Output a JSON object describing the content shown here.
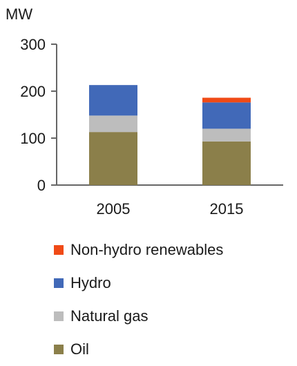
{
  "chart_data": {
    "type": "bar",
    "stacked": true,
    "unit_label": "MW",
    "categories": [
      "2005",
      "2015"
    ],
    "ylim": [
      0,
      300
    ],
    "yticks": [
      0,
      100,
      200,
      300
    ],
    "grid": false,
    "legend_position": "bottom",
    "series": [
      {
        "name": "Oil",
        "color": "#8b7f4a",
        "values": [
          113,
          93
        ]
      },
      {
        "name": "Natural gas",
        "color": "#bdbdbd",
        "values": [
          35,
          27
        ]
      },
      {
        "name": "Hydro",
        "color": "#4169b8",
        "values": [
          65,
          56
        ]
      },
      {
        "name": "Non-hydro renewables",
        "color": "#f04a16",
        "values": [
          0,
          10
        ]
      }
    ],
    "legend_order": [
      "Non-hydro renewables",
      "Hydro",
      "Natural gas",
      "Oil"
    ]
  }
}
